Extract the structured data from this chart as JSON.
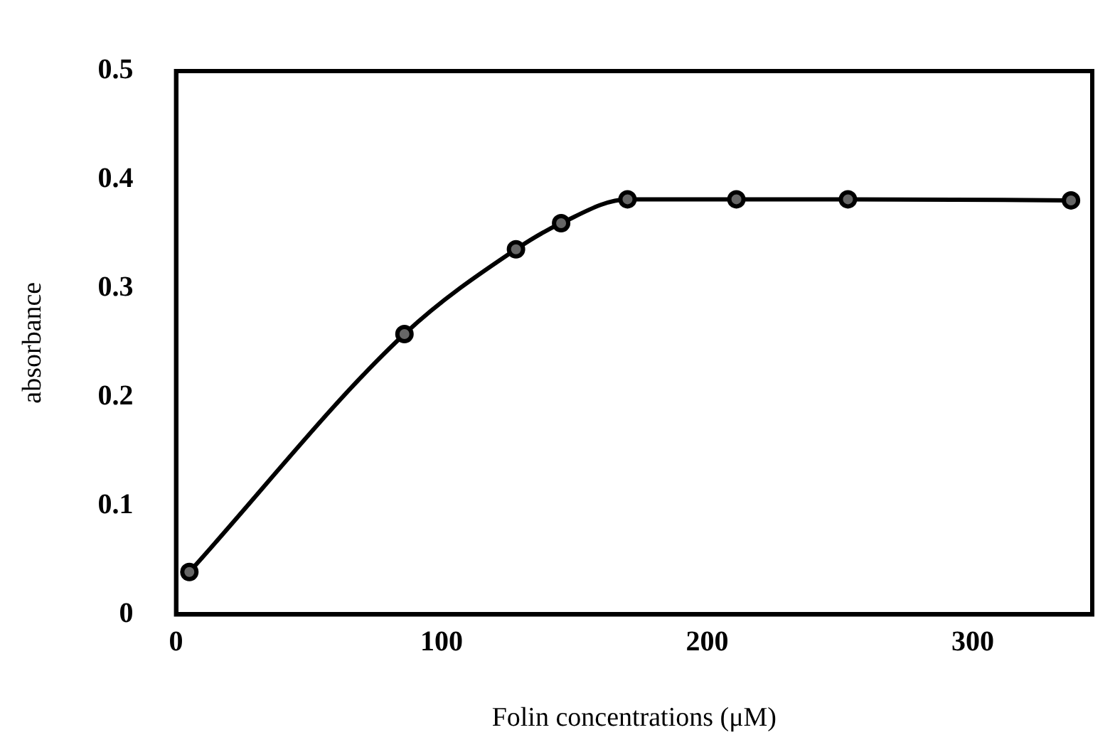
{
  "chart_data": {
    "type": "line",
    "xlabel": "Folin concentrations (μM)",
    "ylabel": "absorbance",
    "x": [
      5,
      86,
      128,
      145,
      170,
      211,
      253,
      337
    ],
    "series": [
      {
        "color": "#000000",
        "values": [
          0.039,
          0.258,
          0.336,
          0.36,
          0.382,
          0.382,
          0.382,
          0.381
        ]
      }
    ],
    "xlim": [
      0,
      345
    ],
    "xticks": [
      0,
      100,
      200,
      300
    ],
    "ylim": [
      0,
      0.5
    ],
    "yticks": [
      0,
      0.1,
      0.2,
      0.3,
      0.4,
      0.5
    ],
    "grid": false,
    "legend": false,
    "marker": "circle",
    "line_style": "solid"
  }
}
